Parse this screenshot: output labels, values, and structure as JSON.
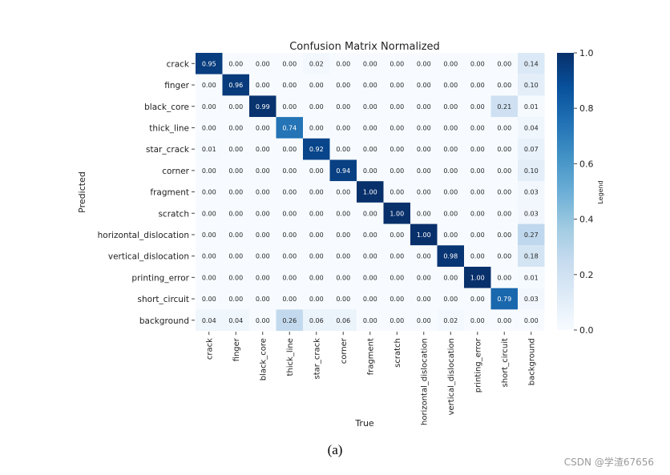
{
  "chart_data": {
    "type": "heatmap",
    "title": "Confusion Matrix Normalized",
    "xlabel": "True",
    "ylabel": "Predicted",
    "x_categories": [
      "crack",
      "finger",
      "black_core",
      "thick_line",
      "star_crack",
      "corner",
      "fragment",
      "scratch",
      "horizontal_dislocation",
      "vertical_dislocation",
      "printing_error",
      "short_circuit",
      "background"
    ],
    "y_categories": [
      "crack",
      "finger",
      "black_core",
      "thick_line",
      "star_crack",
      "corner",
      "fragment",
      "scratch",
      "horizontal_dislocation",
      "vertical_dislocation",
      "printing_error",
      "short_circuit",
      "background"
    ],
    "values": [
      [
        0.95,
        0.0,
        0.0,
        0.0,
        0.02,
        0.0,
        0.0,
        0.0,
        0.0,
        0.0,
        0.0,
        0.0,
        0.14
      ],
      [
        0.0,
        0.96,
        0.0,
        0.0,
        0.0,
        0.0,
        0.0,
        0.0,
        0.0,
        0.0,
        0.0,
        0.0,
        0.1
      ],
      [
        0.0,
        0.0,
        0.99,
        0.0,
        0.0,
        0.0,
        0.0,
        0.0,
        0.0,
        0.0,
        0.0,
        0.21,
        0.01
      ],
      [
        0.0,
        0.0,
        0.0,
        0.74,
        0.0,
        0.0,
        0.0,
        0.0,
        0.0,
        0.0,
        0.0,
        0.0,
        0.04
      ],
      [
        0.01,
        0.0,
        0.0,
        0.0,
        0.92,
        0.0,
        0.0,
        0.0,
        0.0,
        0.0,
        0.0,
        0.0,
        0.07
      ],
      [
        0.0,
        0.0,
        0.0,
        0.0,
        0.0,
        0.94,
        0.0,
        0.0,
        0.0,
        0.0,
        0.0,
        0.0,
        0.1
      ],
      [
        0.0,
        0.0,
        0.0,
        0.0,
        0.0,
        0.0,
        1.0,
        0.0,
        0.0,
        0.0,
        0.0,
        0.0,
        0.03
      ],
      [
        0.0,
        0.0,
        0.0,
        0.0,
        0.0,
        0.0,
        0.0,
        1.0,
        0.0,
        0.0,
        0.0,
        0.0,
        0.03
      ],
      [
        0.0,
        0.0,
        0.0,
        0.0,
        0.0,
        0.0,
        0.0,
        0.0,
        1.0,
        0.0,
        0.0,
        0.0,
        0.27
      ],
      [
        0.0,
        0.0,
        0.0,
        0.0,
        0.0,
        0.0,
        0.0,
        0.0,
        0.0,
        0.98,
        0.0,
        0.0,
        0.18
      ],
      [
        0.0,
        0.0,
        0.0,
        0.0,
        0.0,
        0.0,
        0.0,
        0.0,
        0.0,
        0.0,
        1.0,
        0.0,
        0.01
      ],
      [
        0.0,
        0.0,
        0.0,
        0.0,
        0.0,
        0.0,
        0.0,
        0.0,
        0.0,
        0.0,
        0.0,
        0.79,
        0.03
      ],
      [
        0.04,
        0.04,
        0.0,
        0.26,
        0.06,
        0.06,
        0.0,
        0.0,
        0.0,
        0.02,
        0.0,
        0.0,
        0.0
      ]
    ],
    "value_range": [
      0,
      1
    ],
    "colorbar": {
      "label": "Legend",
      "ticks": [
        0.0,
        0.2,
        0.4,
        0.6,
        0.8,
        1.0
      ],
      "tick_labels": [
        "0.0",
        "0.2",
        "0.4",
        "0.6",
        "0.8",
        "1.0"
      ]
    },
    "colormap": "Blues"
  },
  "caption": "(a)",
  "watermark": "CSDN @学渣67656"
}
